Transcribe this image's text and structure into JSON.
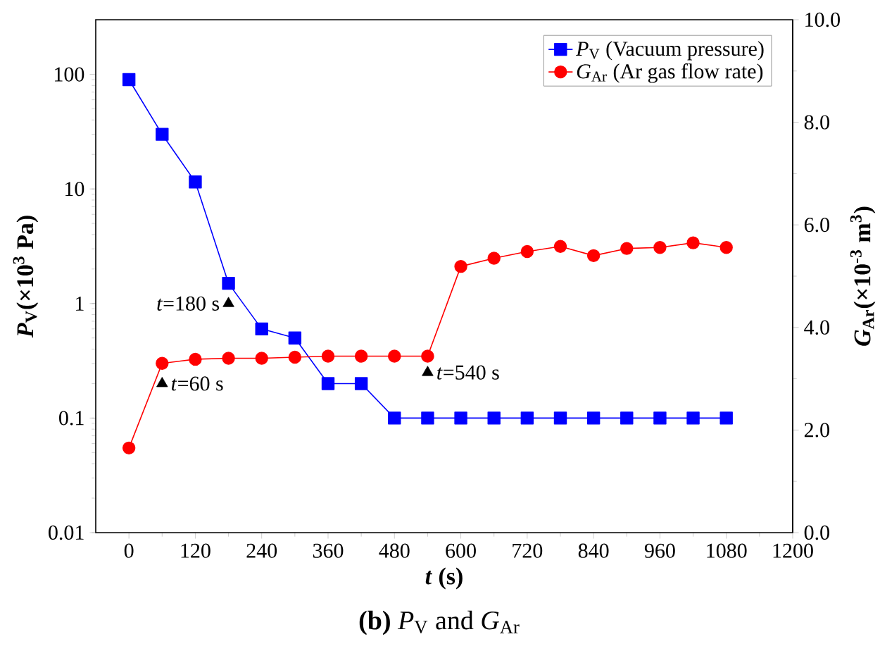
{
  "chart_data": {
    "type": "line",
    "title": "**(b)** *P*$_{V}$ and *G*$_{Ar}$",
    "xlabel": "*t* (s)",
    "ylabel": "*P*$_{V}$(×10$^{3}$ Pa)",
    "y2label": "*G*$_{Ar}$(×10$^{-3}$ m$^{3}$)",
    "x": [
      0,
      60,
      120,
      180,
      240,
      300,
      360,
      420,
      480,
      540,
      600,
      660,
      720,
      780,
      840,
      900,
      960,
      1020,
      1080
    ],
    "series": [
      {
        "name": "*P*$_{V}$ (Vacuum pressure)",
        "color": "#0000ff",
        "marker": "square",
        "values": [
          90,
          30,
          11.5,
          1.5,
          0.6,
          0.5,
          0.2,
          0.2,
          0.1,
          0.1,
          0.1,
          0.1,
          0.1,
          0.1,
          0.1,
          0.1,
          0.1,
          0.1,
          0.1
        ]
      },
      {
        "name": "*G*$_{Ar}$ (Ar gas flow rate)",
        "color": "#ff0000",
        "marker": "circle",
        "axis": "y2",
        "values": [
          1.65,
          3.3,
          3.38,
          3.4,
          3.4,
          3.42,
          3.44,
          3.44,
          3.44,
          3.44,
          5.19,
          5.35,
          5.48,
          5.58,
          5.4,
          5.54,
          5.56,
          5.65,
          5.56
        ]
      }
    ],
    "log": "y",
    "xlim": [
      -60,
      1200
    ],
    "xticks": [
      0,
      120,
      240,
      360,
      480,
      600,
      720,
      840,
      960,
      1080,
      1200
    ],
    "ylim": [
      0.01,
      300
    ],
    "yticks": [
      0.01,
      0.1,
      1,
      10,
      100
    ],
    "y2lim": [
      0,
      10
    ],
    "y2ticks": [
      {
        "value": 0,
        "label": "0.0"
      },
      {
        "value": 2,
        "label": "2.0"
      },
      {
        "value": 4,
        "label": "4.0"
      },
      {
        "value": 6,
        "label": "6.0"
      },
      {
        "value": 8,
        "label": "8.0"
      },
      {
        "value": 10,
        "label": "10.0"
      }
    ],
    "annotations": [
      {
        "text": "*t*=60 s",
        "x": 60,
        "y": 0.2
      },
      {
        "text": "*t*=180 s",
        "x": 180,
        "y": 1
      },
      {
        "text": "*t*=540 s",
        "x": 540,
        "y": 0.25
      }
    ],
    "legend": "top right",
    "grid": false
  }
}
